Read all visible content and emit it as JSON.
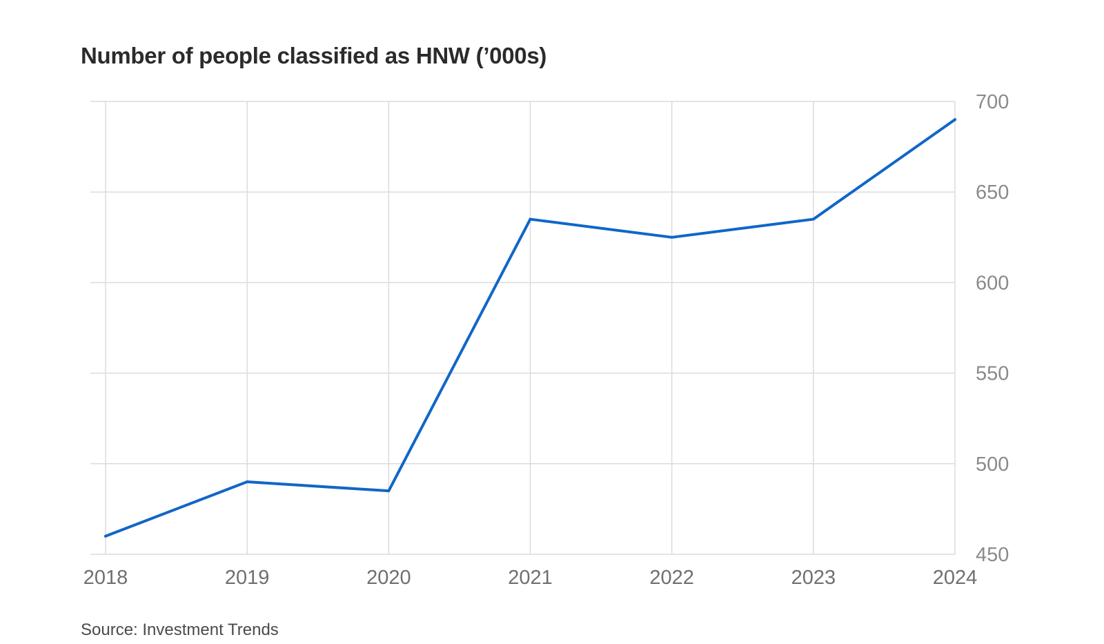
{
  "chart_data": {
    "type": "line",
    "title": "Number of people classified as HNW (’000s)",
    "x": [
      "2018",
      "2019",
      "2020",
      "2021",
      "2022",
      "2023",
      "2024"
    ],
    "series": [
      {
        "values": [
          460,
          490,
          485,
          635,
          625,
          635,
          690
        ]
      }
    ],
    "yticks": [
      "450",
      "500",
      "550",
      "600",
      "650",
      "700"
    ],
    "ylim": [
      450,
      700
    ],
    "y_axis_side": "right",
    "grid": true,
    "source": "Source: Investment Trends"
  },
  "colors": {
    "line": "#1066c8",
    "grid": "#dcdcdc",
    "tick_label": "#8a8a8a",
    "x_tick_label": "#6f6f6f",
    "title": "#2b2b2b"
  }
}
